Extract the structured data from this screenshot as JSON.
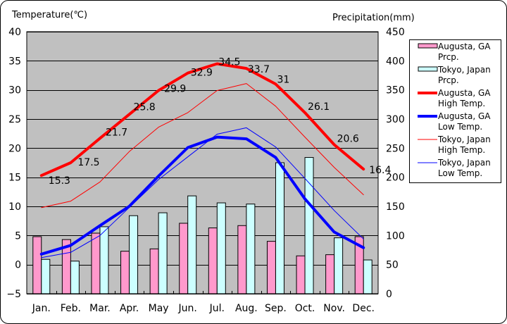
{
  "chart_data": {
    "type": "bar+line",
    "categories": [
      "Jan.",
      "Feb.",
      "Mar.",
      "Apr.",
      "May",
      "Jun.",
      "Jul.",
      "Aug.",
      "Sep.",
      "Oct.",
      "Nov.",
      "Dec."
    ],
    "left_axis": {
      "label": "Temperature(℃)",
      "ylim": [
        -5,
        40
      ],
      "ticks": [
        "40",
        "35",
        "30",
        "25",
        "20",
        "15",
        "10",
        "5",
        "0",
        "−5"
      ],
      "tick_values": [
        40,
        35,
        30,
        25,
        20,
        15,
        10,
        5,
        0,
        -5
      ]
    },
    "right_axis": {
      "label": "Precipitation(mm)",
      "ylim": [
        0,
        450
      ],
      "ticks": [
        "450",
        "400",
        "350",
        "300",
        "250",
        "200",
        "150",
        "100",
        "50",
        "0"
      ],
      "tick_values": [
        450,
        400,
        350,
        300,
        250,
        200,
        150,
        100,
        50,
        0
      ]
    },
    "grid": true,
    "legend_position": "right",
    "bar_series": [
      {
        "name": "Augusta, GA Prcp.",
        "legend_lines": [
          "Augusta, GA",
          "Prcp."
        ],
        "color": "#ff99cc",
        "axis": "right",
        "values": [
          98,
          93,
          104,
          73,
          77,
          121,
          113,
          117,
          90,
          65,
          67,
          98
        ]
      },
      {
        "name": "Tokyo, Japan Prcp.",
        "legend_lines": [
          "Tokyo, Japan",
          "Prcp."
        ],
        "color": "#ccffff",
        "axis": "right",
        "values": [
          59,
          56,
          115,
          134,
          139,
          168,
          156,
          154,
          225,
          234,
          96,
          58
        ]
      }
    ],
    "line_series": [
      {
        "name": "Augusta, GA High Temp.",
        "legend_lines": [
          "Augusta, GA",
          "High Temp."
        ],
        "color": "#ff0000",
        "width": "thick",
        "axis": "left",
        "values": [
          15.3,
          17.5,
          21.7,
          25.8,
          29.9,
          32.9,
          34.5,
          33.7,
          31,
          26.1,
          20.6,
          16.4
        ],
        "data_labels": [
          "15.3",
          "17.5",
          "21.7",
          "25.8",
          "29.9",
          "32.9",
          "34.5",
          "33.7",
          "31",
          "26.1",
          "20.6",
          "16.4"
        ]
      },
      {
        "name": "Augusta, GA Low Temp.",
        "legend_lines": [
          "Augusta, GA",
          "Low Temp."
        ],
        "color": "#0000ff",
        "width": "thick",
        "axis": "left",
        "values": [
          1.8,
          3.3,
          6.7,
          10.0,
          15.2,
          20.1,
          21.9,
          21.6,
          18.4,
          11.3,
          5.6,
          2.9
        ]
      },
      {
        "name": "Tokyo, Japan High Temp.",
        "legend_lines": [
          "Tokyo, Japan",
          "High Temp."
        ],
        "color": "#ff0000",
        "width": "thin",
        "axis": "left",
        "values": [
          9.8,
          10.9,
          14.2,
          19.4,
          23.6,
          26.1,
          29.9,
          31.1,
          27.2,
          21.9,
          16.7,
          12.0
        ]
      },
      {
        "name": "Tokyo, Japan Low Temp.",
        "legend_lines": [
          "Tokyo, Japan",
          "Low Temp."
        ],
        "color": "#0000ff",
        "width": "thin",
        "axis": "left",
        "values": [
          1.2,
          2.1,
          5.0,
          9.8,
          14.6,
          18.5,
          22.4,
          23.5,
          20.2,
          14.8,
          9.3,
          4.4
        ]
      }
    ],
    "plot_background": "#c0c0c0"
  }
}
